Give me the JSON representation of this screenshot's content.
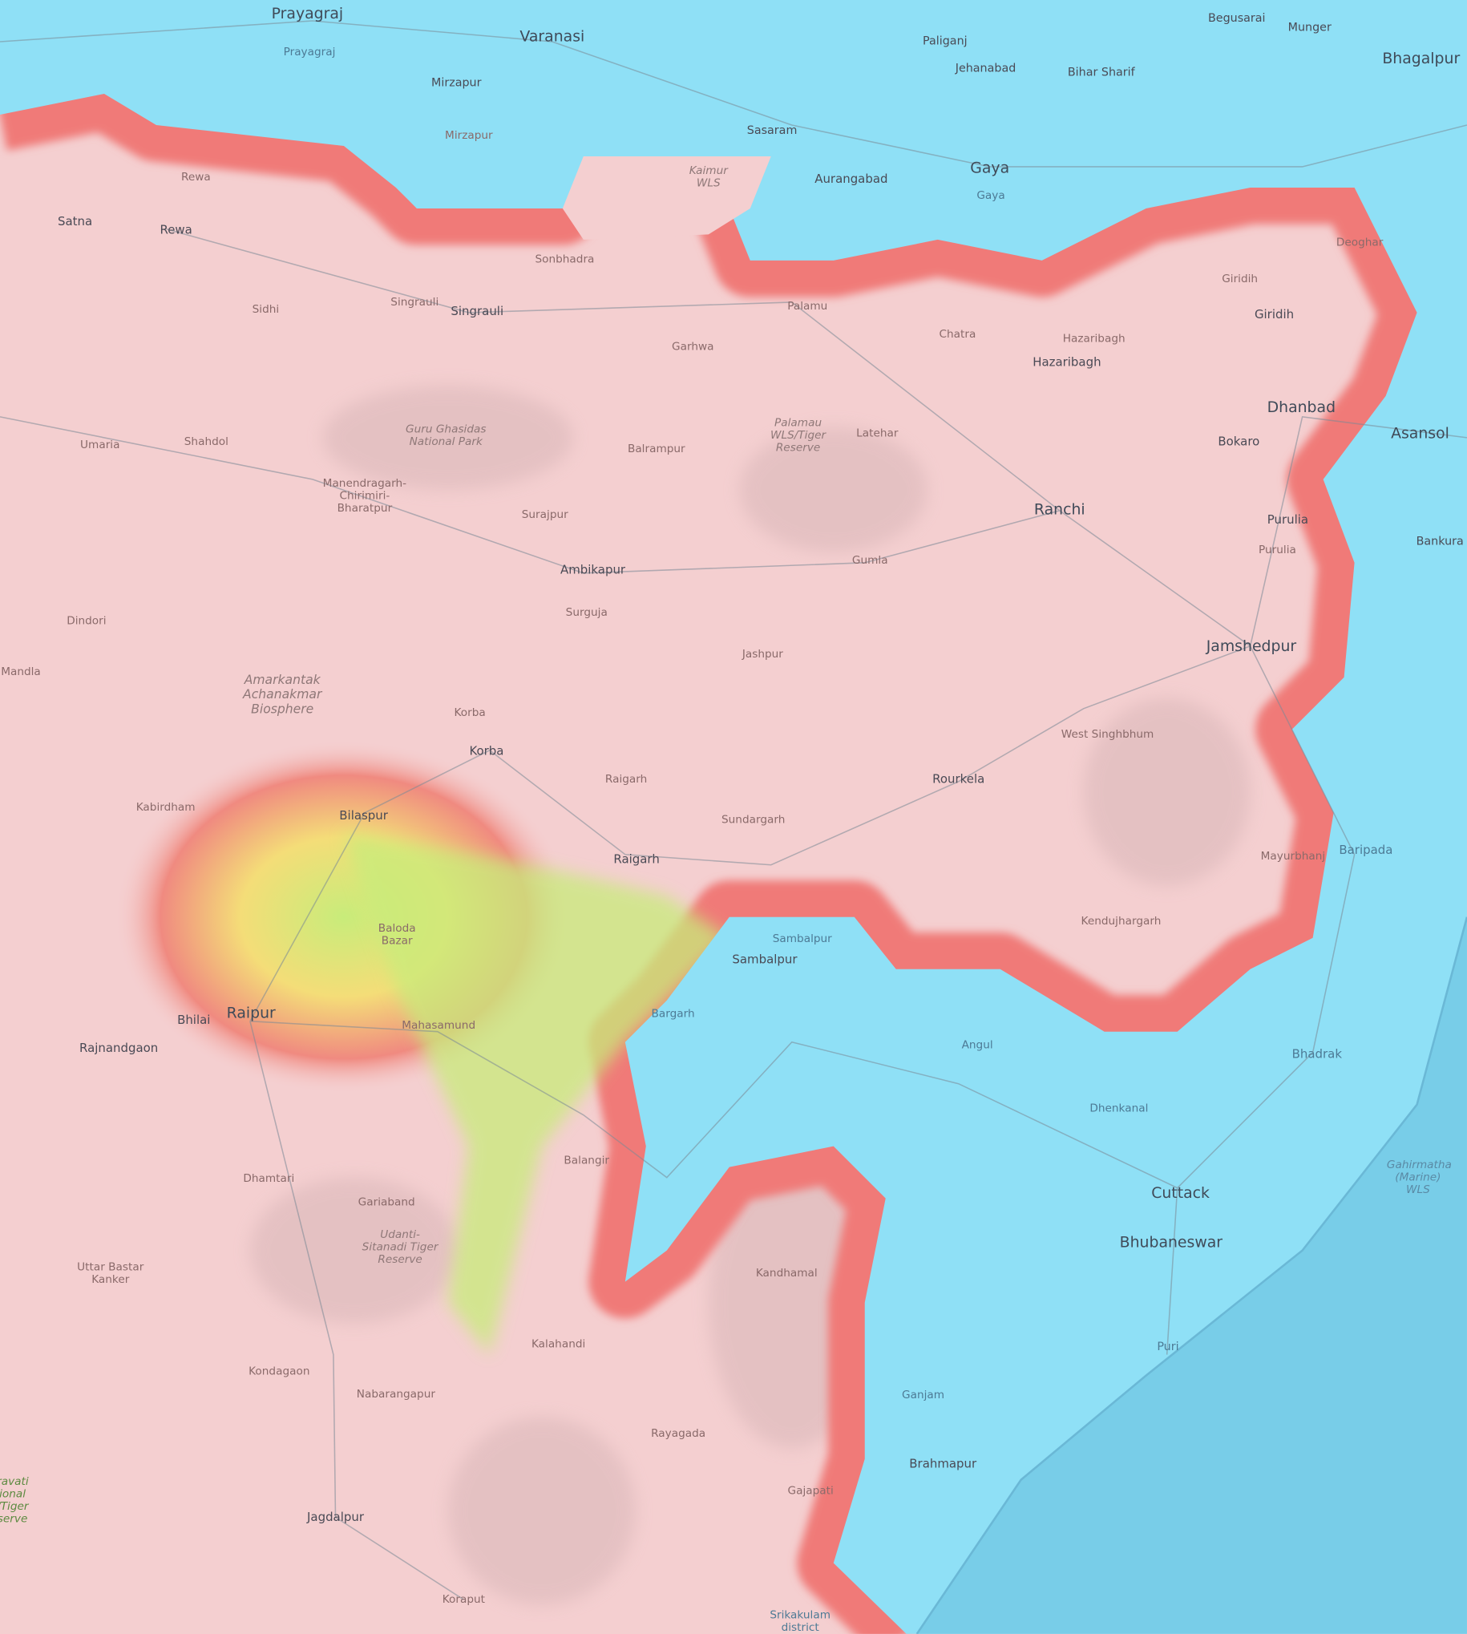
{
  "map": {
    "type": "topographic elevation map",
    "colors": {
      "highland": "#f4cfd0",
      "lowland": "#8fe0f6",
      "sea": "#78cde8",
      "band_red": "#f07a78",
      "band_yellow": "#f2e77a",
      "band_green": "#86ec8a",
      "roads": "#7c8a96"
    },
    "labels": [
      {
        "text": "Prayagraj"
      },
      {
        "text": "Prayagraj"
      },
      {
        "text": "Varanasi"
      },
      {
        "text": "Mirzapur"
      },
      {
        "text": "Paliganj"
      },
      {
        "text": "Jehanabad"
      },
      {
        "text": "Bihar Sharif"
      },
      {
        "text": "Begusarai"
      },
      {
        "text": "Munger"
      },
      {
        "text": "Bhagalpur"
      },
      {
        "text": "Sasaram"
      },
      {
        "text": "Mirzapur"
      },
      {
        "text": "Kaimur WLS"
      },
      {
        "text": "Aurangabad"
      },
      {
        "text": "Gaya"
      },
      {
        "text": "Gaya"
      },
      {
        "text": "Rewa"
      },
      {
        "text": "Satna"
      },
      {
        "text": "Rewa"
      },
      {
        "text": "Sonbhadra"
      },
      {
        "text": "Singrauli"
      },
      {
        "text": "Singrauli"
      },
      {
        "text": "Sidhi"
      },
      {
        "text": "Palamu"
      },
      {
        "text": "Garhwa"
      },
      {
        "text": "Chatra"
      },
      {
        "text": "Hazaribagh"
      },
      {
        "text": "Hazaribagh"
      },
      {
        "text": "Giridih"
      },
      {
        "text": "Giridih"
      },
      {
        "text": "Deoghar"
      },
      {
        "text": "Dhanbad"
      },
      {
        "text": "Asansol"
      },
      {
        "text": "Bokaro"
      },
      {
        "text": "Guru Ghasidas National Park"
      },
      {
        "text": "Umaria"
      },
      {
        "text": "Shahdol"
      },
      {
        "text": "Balrampur"
      },
      {
        "text": "Palamau WLS/Tiger Reserve"
      },
      {
        "text": "Latehar"
      },
      {
        "text": "Manendragarh-Chirimiri-Bharatpur"
      },
      {
        "text": "Surajpur"
      },
      {
        "text": "Ranchi"
      },
      {
        "text": "Purulia"
      },
      {
        "text": "Purulia"
      },
      {
        "text": "Bankura"
      },
      {
        "text": "Ambikapur"
      },
      {
        "text": "Gumla"
      },
      {
        "text": "Dindori"
      },
      {
        "text": "Surguja"
      },
      {
        "text": "Jashpur"
      },
      {
        "text": "Jamshedpur"
      },
      {
        "text": "Mandla"
      },
      {
        "text": "Amarkantak Achanakmar Biosphere"
      },
      {
        "text": "Korba"
      },
      {
        "text": "Korba"
      },
      {
        "text": "West Singhbhum"
      },
      {
        "text": "Raigarh"
      },
      {
        "text": "Rourkela"
      },
      {
        "text": "Kabirdham"
      },
      {
        "text": "Bilaspur"
      },
      {
        "text": "Sundargarh"
      },
      {
        "text": "Raigarh"
      },
      {
        "text": "Mayurbhanj"
      },
      {
        "text": "Baripada"
      },
      {
        "text": "Baloda Bazar"
      },
      {
        "text": "Kendujhargarh"
      },
      {
        "text": "Sambalpur"
      },
      {
        "text": "Sambalpur"
      },
      {
        "text": "Bargarh"
      },
      {
        "text": "Bhilai"
      },
      {
        "text": "Raipur"
      },
      {
        "text": "Rajnandgaon"
      },
      {
        "text": "Mahasamund"
      },
      {
        "text": "Angul"
      },
      {
        "text": "Bhadrak"
      },
      {
        "text": "Dhenkanal"
      },
      {
        "text": "Balangir"
      },
      {
        "text": "Dhamtari"
      },
      {
        "text": "Gariaband"
      },
      {
        "text": "Udanti-Sitanadi Tiger Reserve"
      },
      {
        "text": "Cuttack"
      },
      {
        "text": "Gahirmatha (Marine) WLS"
      },
      {
        "text": "Bhubaneswar"
      },
      {
        "text": "Uttar Bastar Kanker"
      },
      {
        "text": "Kandhamal"
      },
      {
        "text": "Kalahandi"
      },
      {
        "text": "Puri"
      },
      {
        "text": "Kondagaon"
      },
      {
        "text": "Nabarangapur"
      },
      {
        "text": "Ganjam"
      },
      {
        "text": "Rayagada"
      },
      {
        "text": "Brahmapur"
      },
      {
        "text": "Gajapati"
      },
      {
        "text": "Jagdalpur"
      },
      {
        "text": "Koraput"
      },
      {
        "text": "Srikakulam district"
      },
      {
        "text": "ravati ional /Tiger serve"
      }
    ]
  }
}
